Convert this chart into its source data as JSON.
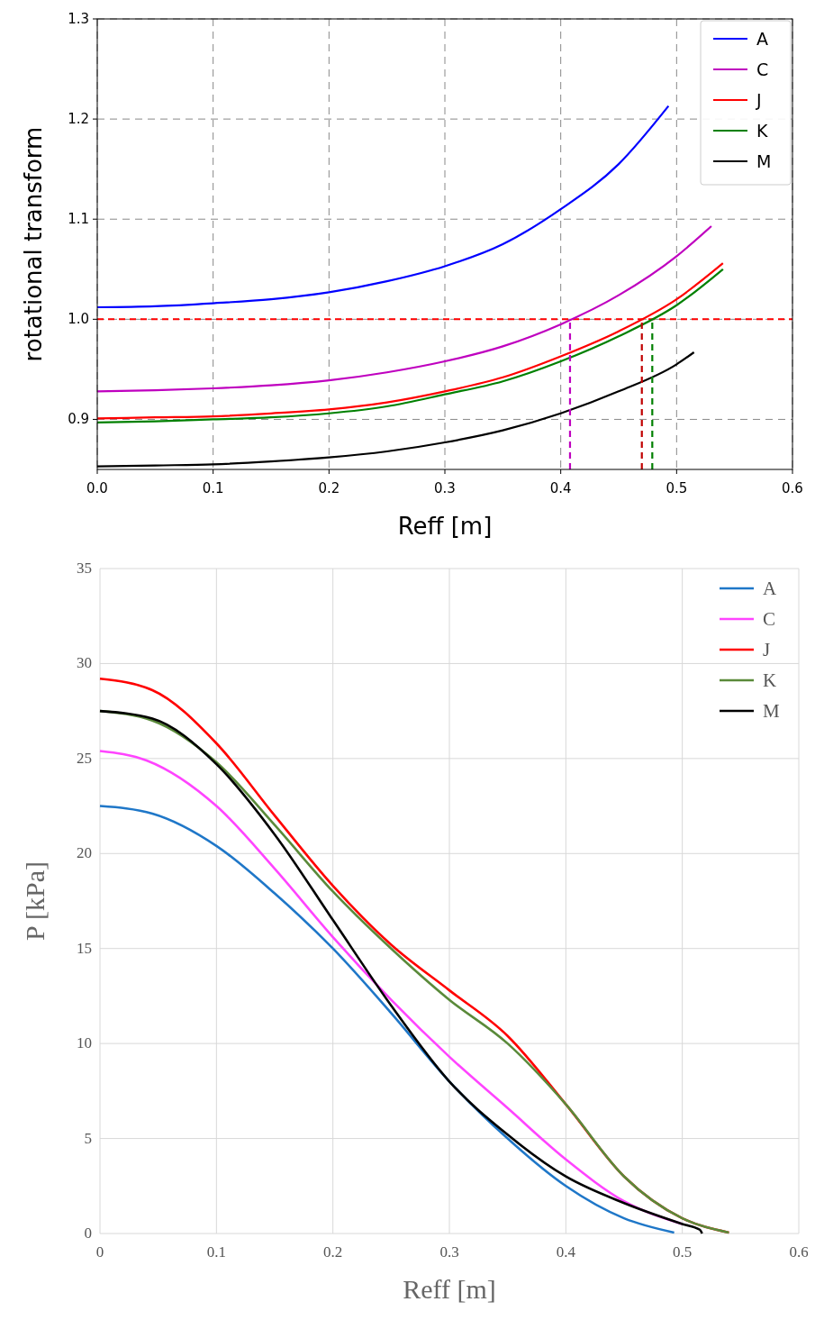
{
  "chart_data": [
    {
      "type": "line",
      "xlabel": "Reff [m]",
      "ylabel": "rotational transform",
      "xlim": [
        0,
        0.6
      ],
      "ylim": [
        0.85,
        1.3
      ],
      "xticks": [
        {
          "value": 0,
          "label": "0.0"
        },
        0.1,
        0.2,
        0.3,
        0.4,
        0.5,
        0.6
      ],
      "yticks": [
        0.9,
        {
          "value": 1,
          "label": "1.0"
        },
        1.1,
        1.2,
        1.3
      ],
      "grid": true,
      "legend": "top right",
      "line_style": "solid",
      "ref_lines": [
        {
          "axis": "y",
          "value": 1.0,
          "color": "#ff0000",
          "line_style": "dashed"
        }
      ],
      "series": [
        {
          "name": "A",
          "color": "#0000ff",
          "x": [
            0,
            0.05,
            0.1,
            0.15,
            0.2,
            0.25,
            0.3,
            0.35,
            0.4,
            0.45,
            0.493
          ],
          "values": [
            1.012,
            1.013,
            1.016,
            1.02,
            1.027,
            1.038,
            1.053,
            1.075,
            1.11,
            1.155,
            1.213
          ]
        },
        {
          "name": "C",
          "color": "#bf00bf",
          "x": [
            0,
            0.05,
            0.1,
            0.15,
            0.2,
            0.25,
            0.3,
            0.35,
            0.4,
            0.45,
            0.5,
            0.53
          ],
          "values": [
            0.928,
            0.929,
            0.931,
            0.934,
            0.939,
            0.947,
            0.958,
            0.973,
            0.995,
            1.024,
            1.063,
            1.093
          ]
        },
        {
          "name": "J",
          "color": "#ff0000",
          "x": [
            0,
            0.05,
            0.1,
            0.15,
            0.2,
            0.25,
            0.3,
            0.35,
            0.4,
            0.45,
            0.5,
            0.54
          ],
          "values": [
            0.901,
            0.902,
            0.903,
            0.906,
            0.91,
            0.917,
            0.928,
            0.942,
            0.963,
            0.988,
            1.02,
            1.056
          ]
        },
        {
          "name": "K",
          "color": "#008000",
          "x": [
            0,
            0.05,
            0.1,
            0.15,
            0.2,
            0.25,
            0.3,
            0.35,
            0.4,
            0.45,
            0.5,
            0.54
          ],
          "values": [
            0.897,
            0.898,
            0.9,
            0.902,
            0.906,
            0.913,
            0.925,
            0.938,
            0.958,
            0.983,
            1.014,
            1.05
          ]
        },
        {
          "name": "M",
          "color": "#000000",
          "x": [
            0,
            0.05,
            0.1,
            0.15,
            0.2,
            0.25,
            0.3,
            0.35,
            0.4,
            0.45,
            0.5,
            0.515
          ],
          "values": [
            0.853,
            0.854,
            0.855,
            0.858,
            0.862,
            0.868,
            0.877,
            0.889,
            0.906,
            0.928,
            0.955,
            0.967
          ]
        },
        {
          "color": "#bf00bf",
          "line_style": "dashed",
          "x": [
            0.408,
            0.408
          ],
          "values": [
            0.85,
            1.0
          ]
        },
        {
          "color": "#c00000",
          "line_style": "dashed",
          "x": [
            0.47,
            0.47
          ],
          "values": [
            0.85,
            1.0
          ]
        },
        {
          "color": "#008000",
          "line_style": "dashed",
          "x": [
            0.479,
            0.479
          ],
          "values": [
            0.85,
            1.0
          ]
        }
      ]
    },
    {
      "type": "line",
      "xlabel": "Reff [m]",
      "ylabel": "P [kPa]",
      "xlim": [
        0,
        0.6
      ],
      "ylim": [
        0,
        35
      ],
      "xticks": [
        0,
        0.1,
        0.2,
        0.3,
        0.4,
        0.5,
        0.6
      ],
      "yticks": [
        0,
        5,
        10,
        15,
        20,
        25,
        30,
        35
      ],
      "grid": true,
      "legend": "top right",
      "line_style": "solid",
      "series": [
        {
          "name": "A",
          "color": "#1f77c8",
          "x": [
            0,
            0.045,
            0.1,
            0.15,
            0.2,
            0.25,
            0.3,
            0.35,
            0.4,
            0.45,
            0.493
          ],
          "values": [
            22.5,
            22.1,
            20.4,
            17.9,
            15,
            11.6,
            8.0,
            5.0,
            2.5,
            0.8,
            0.05
          ]
        },
        {
          "name": "C",
          "color": "#ff44ff",
          "x": [
            0,
            0.04,
            0.1,
            0.15,
            0.2,
            0.25,
            0.3,
            0.35,
            0.4,
            0.45,
            0.5
          ],
          "values": [
            25.4,
            24.9,
            22.5,
            19.2,
            15.6,
            12.3,
            9.3,
            6.6,
            3.9,
            1.7,
            0.5
          ]
        },
        {
          "name": "J",
          "color": "#ff0000",
          "x": [
            0,
            0.045,
            0.1,
            0.15,
            0.2,
            0.25,
            0.3,
            0.35,
            0.4,
            0.45,
            0.5,
            0.54
          ],
          "values": [
            29.2,
            28.6,
            25.8,
            22,
            18.3,
            15.2,
            12.8,
            10.4,
            6.8,
            3.0,
            0.8,
            0.05
          ]
        },
        {
          "name": "K",
          "color": "#5a8a3a",
          "x": [
            0,
            0.045,
            0.1,
            0.15,
            0.2,
            0.25,
            0.3,
            0.35,
            0.4,
            0.45,
            0.5,
            0.54
          ],
          "values": [
            27.5,
            27.0,
            24.8,
            21.5,
            18.0,
            15.0,
            12.3,
            10.0,
            6.8,
            3.0,
            0.8,
            0.05
          ]
        },
        {
          "name": "M",
          "color": "#000000",
          "x": [
            0,
            0.045,
            0.1,
            0.15,
            0.2,
            0.25,
            0.3,
            0.35,
            0.4,
            0.45,
            0.5,
            0.515,
            0.517
          ],
          "values": [
            27.5,
            27.1,
            24.7,
            21.0,
            16.5,
            12.0,
            8.0,
            5.2,
            3.0,
            1.6,
            0.5,
            0.2,
            0
          ]
        }
      ]
    }
  ]
}
